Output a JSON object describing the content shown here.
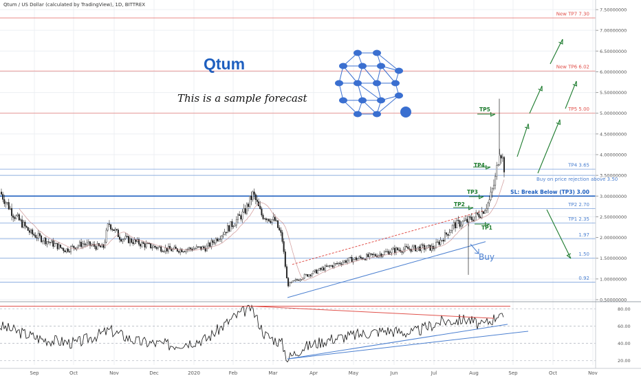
{
  "header": {
    "symbol_line": "Qtum / US Dollar (calculated by TradingView), 1D, BITTREX"
  },
  "overlay": {
    "title": "Qtum",
    "subtitle": "This is a sample forecast"
  },
  "colors": {
    "blue": "#1e5fbf",
    "red": "#e0504a",
    "green": "#1b7a2c",
    "grid": "#eceff3",
    "candle": "#222222"
  },
  "chart_data": {
    "type": "line",
    "price_axis": {
      "ticks": [
        {
          "value": 7.5,
          "label": "7.50000000"
        },
        {
          "value": 7.0,
          "label": "7.00000000"
        },
        {
          "value": 6.5,
          "label": "6.50000000"
        },
        {
          "value": 6.0,
          "label": "6.00000000"
        },
        {
          "value": 5.5,
          "label": "5.50000000"
        },
        {
          "value": 5.0,
          "label": "5.00000000"
        },
        {
          "value": 4.5,
          "label": "4.50000000"
        },
        {
          "value": 4.0,
          "label": "4.00000000"
        },
        {
          "value": 3.5,
          "label": "3.50000000"
        },
        {
          "value": 3.0,
          "label": "3.00000000"
        },
        {
          "value": 2.5,
          "label": "2.50000000"
        },
        {
          "value": 2.0,
          "label": "2.00000000"
        },
        {
          "value": 1.5,
          "label": "1.50000000"
        },
        {
          "value": 1.0,
          "label": "1.00000000"
        },
        {
          "value": 0.5,
          "label": "0.50000000"
        }
      ],
      "ylim": [
        0.5,
        7.6
      ]
    },
    "rsi_axis": {
      "ticks": [
        {
          "value": 80,
          "label": "80.00"
        },
        {
          "value": 60,
          "label": "60.00"
        },
        {
          "value": 40,
          "label": "40.00"
        },
        {
          "value": 20,
          "label": "20.00"
        }
      ],
      "ylim": [
        15,
        85
      ]
    },
    "time_axis": {
      "labels": [
        "Sep",
        "Oct",
        "Nov",
        "Dec",
        "2020",
        "Feb",
        "Mar",
        "Apr",
        "May",
        "Jun",
        "Jul",
        "Aug",
        "Sep",
        "Oct",
        "Nov"
      ]
    },
    "levels": [
      {
        "label": "New TP7 7.30",
        "value": 7.3,
        "color": "#e0504a"
      },
      {
        "label": "New TP6 6.02",
        "value": 6.02,
        "color": "#e0504a"
      },
      {
        "label": "TP5 5.00",
        "value": 5.0,
        "color": "#e0504a"
      },
      {
        "label": "TP4 3.65",
        "value": 3.65,
        "color": "#4a7fd0"
      },
      {
        "label": "Buy on price rejection above 3.50",
        "value": 3.5,
        "color": "#4a7fd0"
      },
      {
        "label": "SL: Break Below (TP3) 3.00",
        "value": 3.0,
        "color": "#1e5fbf"
      },
      {
        "label": "TP2 2.70",
        "value": 2.7,
        "color": "#4a7fd0"
      },
      {
        "label": "TP1 2.35",
        "value": 2.35,
        "color": "#4a7fd0"
      },
      {
        "label": "1.97",
        "value": 1.97,
        "color": "#4a7fd0"
      },
      {
        "label": "1.50",
        "value": 1.5,
        "color": "#4a7fd0"
      },
      {
        "label": "0.92",
        "value": 0.92,
        "color": "#4a7fd0"
      }
    ],
    "annotations": {
      "tp_labels": [
        "TP5",
        "TP4",
        "TP3",
        "TP2",
        "TP1"
      ],
      "buy_label": "Buy"
    },
    "price_series": {
      "name": "",
      "x": [
        "Aug",
        "Sep",
        "Oct",
        "Nov",
        "Dec",
        "2020",
        "Feb",
        "Mar",
        "Apr",
        "May",
        "Jun",
        "Jul",
        "Aug"
      ],
      "close": [
        3.1,
        2.2,
        1.8,
        2.3,
        1.9,
        1.8,
        3.05,
        0.8,
        1.25,
        1.7,
        1.8,
        2.3,
        3.8
      ]
    }
  }
}
